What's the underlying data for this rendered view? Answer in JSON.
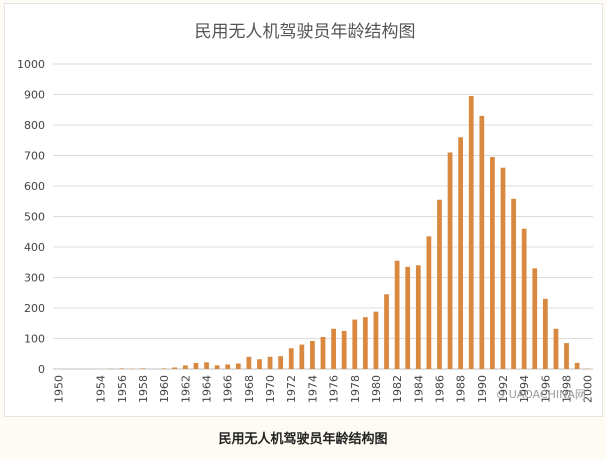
{
  "chart_data": {
    "type": "bar",
    "title": "民用无人机驾驶员年龄结构图",
    "xlabel": "",
    "ylabel": "",
    "ylim": [
      0,
      1000
    ],
    "yticks": [
      0,
      100,
      200,
      300,
      400,
      500,
      600,
      700,
      800,
      900,
      1000
    ],
    "grid": true,
    "legend": "none",
    "bar_color": "#d9883f",
    "categories": [
      "1950",
      "1951",
      "1952",
      "1953",
      "1954",
      "1955",
      "1956",
      "1957",
      "1958",
      "1959",
      "1960",
      "1961",
      "1962",
      "1963",
      "1964",
      "1965",
      "1966",
      "1967",
      "1968",
      "1969",
      "1970",
      "1971",
      "1972",
      "1973",
      "1974",
      "1975",
      "1976",
      "1977",
      "1978",
      "1979",
      "1980",
      "1981",
      "1982",
      "1983",
      "1984",
      "1985",
      "1986",
      "1987",
      "1988",
      "1989",
      "1990",
      "1991",
      "1992",
      "1993",
      "1994",
      "1995",
      "1996",
      "1997",
      "1998",
      "1999",
      "2000"
    ],
    "xtick_labels": [
      "1950",
      "1954",
      "1956",
      "1958",
      "1960",
      "1962",
      "1964",
      "1966",
      "1968",
      "1970",
      "1972",
      "1974",
      "1976",
      "1978",
      "1980",
      "1982",
      "1984",
      "1986",
      "1988",
      "1990",
      "1992",
      "1994",
      "1996",
      "1998",
      "2000"
    ],
    "values": [
      0,
      0,
      0,
      0,
      0,
      1,
      2,
      1,
      2,
      0,
      2,
      5,
      12,
      20,
      22,
      12,
      15,
      18,
      40,
      32,
      40,
      42,
      68,
      80,
      92,
      105,
      132,
      125,
      162,
      170,
      188,
      245,
      355,
      335,
      340,
      435,
      555,
      710,
      760,
      895,
      830,
      695,
      660,
      558,
      460,
      330,
      230,
      132,
      85,
      20,
      1
    ]
  },
  "caption": "民用无人机驾驶员年龄结构图",
  "watermark": "⊙ UAOACHINA网"
}
